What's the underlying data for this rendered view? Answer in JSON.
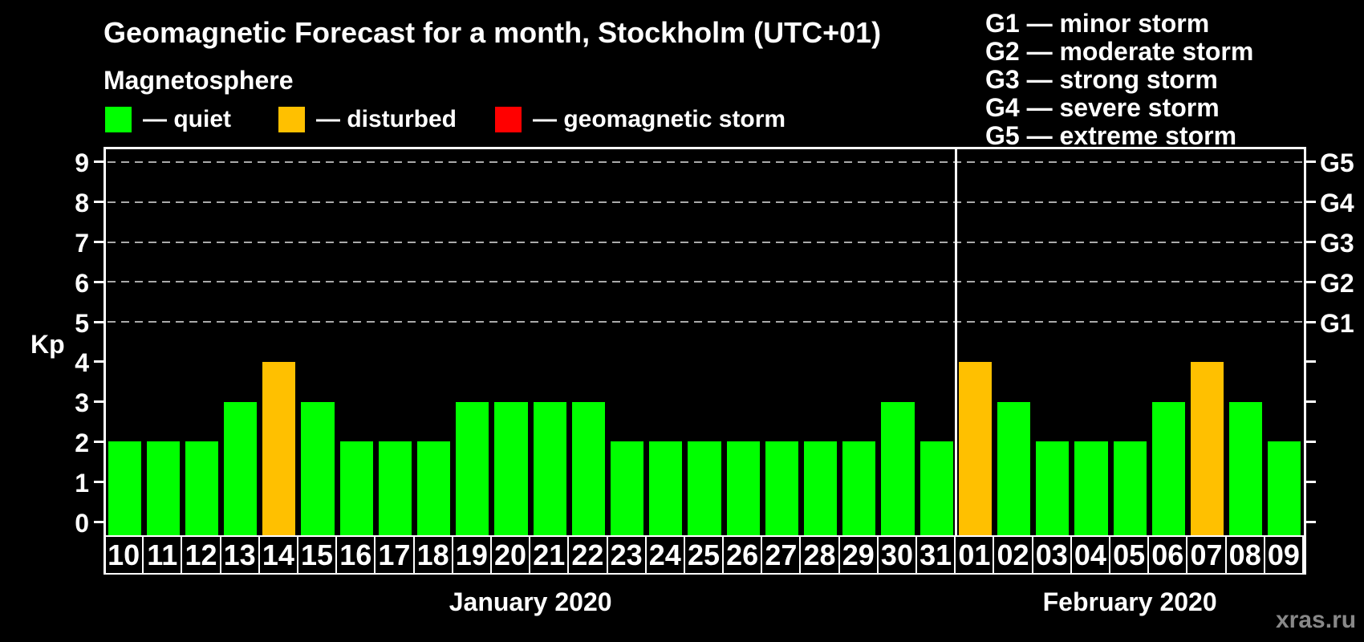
{
  "header": {
    "title": "Geomagnetic Forecast for a month, Stockholm (UTC+01)",
    "subtitle": "Magnetosphere",
    "legend": [
      {
        "name": "quiet",
        "label": "— quiet",
        "color": "#00ff00"
      },
      {
        "name": "disturbed",
        "label": "— disturbed",
        "color": "#ffc000"
      },
      {
        "name": "storm",
        "label": "— geomagnetic storm",
        "color": "#ff0000"
      }
    ]
  },
  "storm_scale_legend": [
    "G1 — minor storm",
    "G2 — moderate storm",
    "G3 — strong storm",
    "G4 — severe storm",
    "G5 — extreme storm"
  ],
  "watermark": "xras.ru",
  "chart_data": {
    "type": "bar",
    "title": "Geomagnetic Forecast for a month, Stockholm (UTC+01)",
    "ylabel": "Kp",
    "ylim": [
      0,
      9
    ],
    "yticks": [
      0,
      1,
      2,
      3,
      4,
      5,
      6,
      7,
      8,
      9
    ],
    "gridlines_at_kp": [
      5,
      6,
      7,
      8,
      9
    ],
    "grid": "dashed horizontal lines at Kp 5-9",
    "right_axis_labels": [
      {
        "kp": 5,
        "label": "G1"
      },
      {
        "kp": 6,
        "label": "G2"
      },
      {
        "kp": 7,
        "label": "G3"
      },
      {
        "kp": 8,
        "label": "G4"
      },
      {
        "kp": 9,
        "label": "G5"
      }
    ],
    "months": [
      {
        "label": "January 2020",
        "days": [
          "10",
          "11",
          "12",
          "13",
          "14",
          "15",
          "16",
          "17",
          "18",
          "19",
          "20",
          "21",
          "22",
          "23",
          "24",
          "25",
          "26",
          "27",
          "28",
          "29",
          "30",
          "31"
        ],
        "kp": [
          2,
          2,
          2,
          3,
          4,
          3,
          2,
          2,
          2,
          3,
          3,
          3,
          3,
          2,
          2,
          2,
          2,
          2,
          2,
          2,
          3,
          2
        ]
      },
      {
        "label": "February 2020",
        "days": [
          "01",
          "02",
          "03",
          "04",
          "05",
          "06",
          "07",
          "08",
          "09"
        ],
        "kp": [
          4,
          3,
          2,
          2,
          2,
          3,
          4,
          3,
          2
        ]
      }
    ],
    "color_rule": {
      "quiet_kp_max": 3,
      "disturbed_kp": 4,
      "storm_kp_min": 5
    },
    "colors": {
      "quiet": "#00ff00",
      "disturbed": "#ffc000",
      "storm": "#ff0000",
      "axis": "#ffffff",
      "grid": "#aaaaaa",
      "background": "#000000",
      "watermark": "#888888"
    }
  }
}
